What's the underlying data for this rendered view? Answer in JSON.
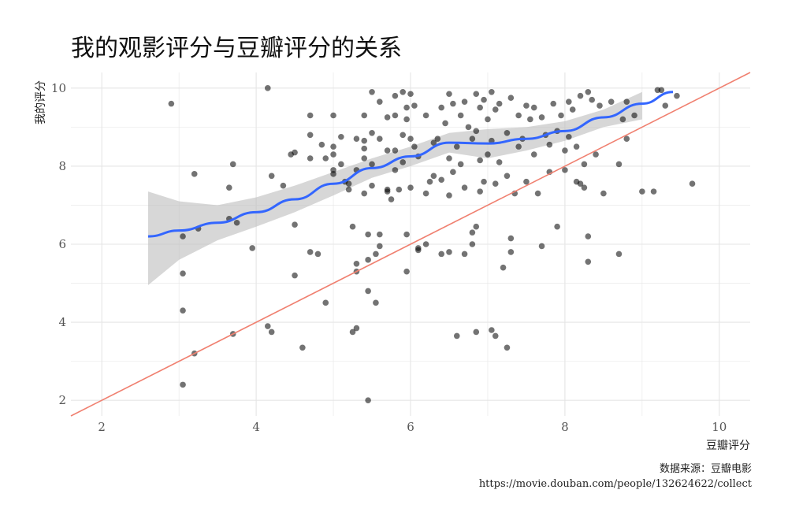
{
  "chart_data": {
    "type": "scatter",
    "title": "我的观影评分与豆瓣评分的关系",
    "xlabel": "豆瓣评分",
    "ylabel": "我的评分",
    "xlim": [
      1.6,
      10.4
    ],
    "ylim": [
      1.6,
      10.4
    ],
    "x_ticks": [
      2,
      4,
      6,
      8,
      10
    ],
    "y_ticks": [
      2,
      4,
      6,
      8,
      10
    ],
    "x_tick_labels": [
      "2",
      "4",
      "6",
      "8",
      "10"
    ],
    "y_tick_labels": [
      "2",
      "4",
      "6",
      "8",
      "10"
    ],
    "grid": true,
    "points": [
      [
        2.9,
        9.6
      ],
      [
        3.05,
        6.2
      ],
      [
        3.05,
        5.25
      ],
      [
        3.05,
        4.3
      ],
      [
        3.05,
        2.4
      ],
      [
        3.2,
        7.8
      ],
      [
        3.2,
        3.2
      ],
      [
        3.25,
        6.4
      ],
      [
        3.65,
        6.65
      ],
      [
        3.65,
        7.45
      ],
      [
        3.7,
        8.05
      ],
      [
        3.7,
        3.7
      ],
      [
        3.75,
        6.55
      ],
      [
        3.95,
        5.9
      ],
      [
        4.15,
        10.0
      ],
      [
        4.15,
        3.9
      ],
      [
        4.2,
        7.75
      ],
      [
        4.2,
        3.75
      ],
      [
        4.35,
        7.5
      ],
      [
        4.45,
        8.3
      ],
      [
        4.5,
        8.35
      ],
      [
        4.5,
        6.5
      ],
      [
        4.5,
        5.2
      ],
      [
        4.6,
        3.35
      ],
      [
        4.7,
        9.3
      ],
      [
        4.7,
        8.8
      ],
      [
        4.7,
        8.2
      ],
      [
        4.7,
        5.8
      ],
      [
        4.8,
        5.75
      ],
      [
        4.85,
        8.55
      ],
      [
        4.9,
        8.2
      ],
      [
        4.9,
        4.5
      ],
      [
        5.0,
        9.3
      ],
      [
        5.0,
        8.5
      ],
      [
        5.0,
        8.3
      ],
      [
        5.0,
        7.9
      ],
      [
        5.0,
        7.8
      ],
      [
        5.1,
        8.75
      ],
      [
        5.1,
        8.05
      ],
      [
        5.15,
        7.6
      ],
      [
        5.2,
        7.55
      ],
      [
        5.2,
        7.4
      ],
      [
        5.25,
        6.45
      ],
      [
        5.25,
        3.75
      ],
      [
        5.3,
        8.7
      ],
      [
        5.3,
        7.9
      ],
      [
        5.3,
        5.5
      ],
      [
        5.3,
        5.3
      ],
      [
        5.3,
        3.85
      ],
      [
        5.4,
        9.3
      ],
      [
        5.4,
        8.65
      ],
      [
        5.4,
        8.45
      ],
      [
        5.4,
        8.2
      ],
      [
        5.4,
        7.3
      ],
      [
        5.45,
        6.25
      ],
      [
        5.45,
        5.6
      ],
      [
        5.45,
        4.8
      ],
      [
        5.45,
        2.0
      ],
      [
        5.5,
        9.9
      ],
      [
        5.5,
        8.85
      ],
      [
        5.5,
        8.05
      ],
      [
        5.5,
        7.5
      ],
      [
        5.55,
        5.75
      ],
      [
        5.55,
        4.5
      ],
      [
        5.6,
        9.65
      ],
      [
        5.6,
        8.7
      ],
      [
        5.6,
        6.25
      ],
      [
        5.6,
        5.95
      ],
      [
        5.7,
        9.25
      ],
      [
        5.7,
        8.4
      ],
      [
        5.7,
        7.4
      ],
      [
        5.7,
        7.35
      ],
      [
        5.75,
        7.15
      ],
      [
        5.8,
        9.8
      ],
      [
        5.8,
        9.3
      ],
      [
        5.8,
        8.4
      ],
      [
        5.8,
        7.9
      ],
      [
        5.85,
        7.4
      ],
      [
        5.9,
        9.9
      ],
      [
        5.9,
        8.8
      ],
      [
        5.9,
        8.1
      ],
      [
        5.95,
        9.5
      ],
      [
        5.95,
        9.2
      ],
      [
        5.95,
        6.25
      ],
      [
        5.95,
        5.3
      ],
      [
        6.0,
        9.85
      ],
      [
        6.0,
        8.7
      ],
      [
        6.0,
        7.45
      ],
      [
        6.05,
        9.55
      ],
      [
        6.05,
        8.5
      ],
      [
        6.1,
        8.25
      ],
      [
        6.1,
        5.9
      ],
      [
        6.1,
        5.85
      ],
      [
        6.2,
        9.3
      ],
      [
        6.2,
        7.3
      ],
      [
        6.2,
        6.0
      ],
      [
        6.25,
        7.6
      ],
      [
        6.3,
        8.6
      ],
      [
        6.3,
        7.75
      ],
      [
        6.35,
        8.7
      ],
      [
        6.4,
        9.5
      ],
      [
        6.4,
        7.65
      ],
      [
        6.4,
        5.75
      ],
      [
        6.45,
        9.1
      ],
      [
        6.5,
        9.85
      ],
      [
        6.5,
        8.2
      ],
      [
        6.5,
        7.25
      ],
      [
        6.5,
        5.8
      ],
      [
        6.55,
        9.6
      ],
      [
        6.55,
        7.85
      ],
      [
        6.6,
        8.5
      ],
      [
        6.6,
        3.65
      ],
      [
        6.65,
        9.3
      ],
      [
        6.65,
        8.05
      ],
      [
        6.7,
        9.65
      ],
      [
        6.7,
        7.45
      ],
      [
        6.7,
        5.75
      ],
      [
        6.75,
        9.0
      ],
      [
        6.8,
        8.7
      ],
      [
        6.8,
        6.3
      ],
      [
        6.8,
        6.0
      ],
      [
        6.85,
        9.85
      ],
      [
        6.85,
        8.9
      ],
      [
        6.85,
        6.45
      ],
      [
        6.85,
        3.75
      ],
      [
        6.9,
        9.5
      ],
      [
        6.9,
        8.15
      ],
      [
        6.9,
        7.35
      ],
      [
        6.95,
        9.7
      ],
      [
        6.95,
        7.6
      ],
      [
        7.0,
        9.2
      ],
      [
        7.0,
        8.3
      ],
      [
        7.05,
        9.9
      ],
      [
        7.05,
        8.65
      ],
      [
        7.05,
        3.8
      ],
      [
        7.1,
        9.45
      ],
      [
        7.1,
        7.55
      ],
      [
        7.1,
        3.65
      ],
      [
        7.15,
        9.6
      ],
      [
        7.15,
        8.1
      ],
      [
        7.2,
        5.4
      ],
      [
        7.25,
        8.85
      ],
      [
        7.25,
        7.75
      ],
      [
        7.25,
        3.35
      ],
      [
        7.3,
        9.75
      ],
      [
        7.3,
        6.15
      ],
      [
        7.3,
        5.8
      ],
      [
        7.35,
        7.3
      ],
      [
        7.4,
        9.3
      ],
      [
        7.4,
        8.5
      ],
      [
        7.45,
        8.7
      ],
      [
        7.5,
        9.55
      ],
      [
        7.5,
        7.6
      ],
      [
        7.55,
        9.2
      ],
      [
        7.6,
        9.5
      ],
      [
        7.6,
        8.3
      ],
      [
        7.65,
        7.3
      ],
      [
        7.7,
        9.25
      ],
      [
        7.7,
        5.95
      ],
      [
        7.75,
        8.8
      ],
      [
        7.8,
        8.55
      ],
      [
        7.8,
        7.85
      ],
      [
        7.85,
        9.6
      ],
      [
        7.9,
        8.9
      ],
      [
        7.9,
        6.45
      ],
      [
        7.95,
        9.3
      ],
      [
        8.0,
        8.4
      ],
      [
        8.0,
        7.9
      ],
      [
        8.05,
        9.65
      ],
      [
        8.05,
        8.75
      ],
      [
        8.1,
        9.45
      ],
      [
        8.15,
        8.5
      ],
      [
        8.15,
        7.6
      ],
      [
        8.2,
        9.8
      ],
      [
        8.2,
        7.55
      ],
      [
        8.25,
        8.05
      ],
      [
        8.25,
        7.45
      ],
      [
        8.3,
        9.9
      ],
      [
        8.3,
        6.2
      ],
      [
        8.3,
        5.55
      ],
      [
        8.35,
        9.7
      ],
      [
        8.4,
        8.3
      ],
      [
        8.45,
        9.55
      ],
      [
        8.5,
        7.3
      ],
      [
        8.6,
        9.65
      ],
      [
        8.7,
        8.05
      ],
      [
        8.7,
        5.75
      ],
      [
        8.75,
        9.2
      ],
      [
        8.8,
        9.65
      ],
      [
        8.8,
        8.7
      ],
      [
        8.9,
        9.3
      ],
      [
        9.0,
        7.35
      ],
      [
        9.15,
        7.35
      ],
      [
        9.2,
        9.95
      ],
      [
        9.25,
        9.95
      ],
      [
        9.3,
        9.55
      ],
      [
        9.45,
        9.8
      ],
      [
        9.65,
        7.55
      ]
    ],
    "smooth_line": [
      [
        2.6,
        6.2
      ],
      [
        3.0,
        6.35
      ],
      [
        3.5,
        6.55
      ],
      [
        4.0,
        6.82
      ],
      [
        4.5,
        7.15
      ],
      [
        5.0,
        7.55
      ],
      [
        5.5,
        7.95
      ],
      [
        6.0,
        8.25
      ],
      [
        6.5,
        8.6
      ],
      [
        7.0,
        8.58
      ],
      [
        7.5,
        8.7
      ],
      [
        8.0,
        8.9
      ],
      [
        8.5,
        9.25
      ],
      [
        9.0,
        9.6
      ],
      [
        9.4,
        9.9
      ]
    ],
    "smooth_band_upper": [
      [
        2.6,
        7.35
      ],
      [
        3.0,
        7.1
      ],
      [
        3.5,
        7.0
      ],
      [
        4.0,
        7.2
      ],
      [
        4.5,
        7.5
      ],
      [
        5.0,
        7.85
      ],
      [
        5.5,
        8.2
      ],
      [
        6.0,
        8.5
      ],
      [
        6.5,
        8.85
      ],
      [
        7.0,
        8.95
      ],
      [
        7.5,
        9.0
      ],
      [
        8.0,
        9.15
      ],
      [
        8.5,
        9.45
      ],
      [
        9.0,
        9.9
      ]
    ],
    "smooth_band_lower": [
      [
        2.6,
        4.95
      ],
      [
        3.0,
        5.6
      ],
      [
        3.5,
        6.1
      ],
      [
        4.0,
        6.45
      ],
      [
        4.5,
        6.82
      ],
      [
        5.0,
        7.25
      ],
      [
        5.5,
        7.7
      ],
      [
        6.0,
        8.0
      ],
      [
        6.5,
        8.35
      ],
      [
        7.0,
        8.2
      ],
      [
        7.5,
        8.4
      ],
      [
        8.0,
        8.65
      ],
      [
        8.5,
        9.0
      ],
      [
        9.0,
        9.2
      ]
    ],
    "reference_line": [
      [
        1.6,
        1.6
      ],
      [
        10.4,
        10.4
      ]
    ]
  },
  "colors": {
    "points": "#000000",
    "smooth_line": "#3366FF",
    "band": "#BDBDBD",
    "reference_line": "#F08070",
    "grid": "#E5E5E5"
  },
  "caption": {
    "source": "数据来源：豆瓣电影",
    "url": "https://movie.douban.com/people/132624622/collect"
  }
}
